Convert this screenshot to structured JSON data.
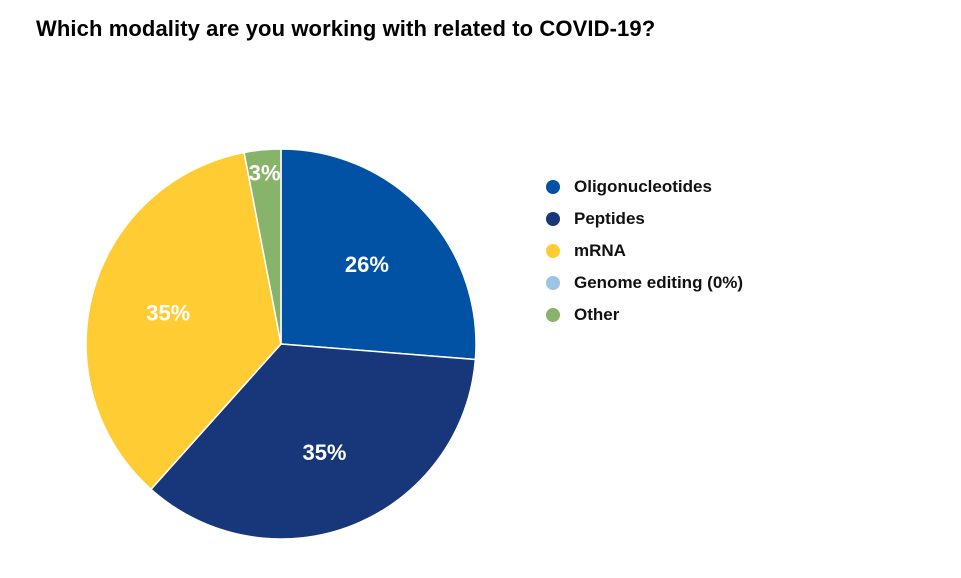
{
  "chart_data": {
    "type": "pie",
    "title": "Which modality are you working with related to COVID-19?",
    "categories": [
      "Oligonucleotides",
      "Peptides",
      "mRNA",
      "Genome editing (0%)",
      "Other"
    ],
    "values": [
      26,
      35,
      35,
      0,
      3
    ],
    "labels": [
      "26%",
      "35%",
      "35%",
      "",
      "3%"
    ],
    "colors": [
      "#0152A5",
      "#17377A",
      "#FFCC33",
      "#9DC3E6",
      "#88B36A"
    ],
    "legend_position": "right"
  }
}
